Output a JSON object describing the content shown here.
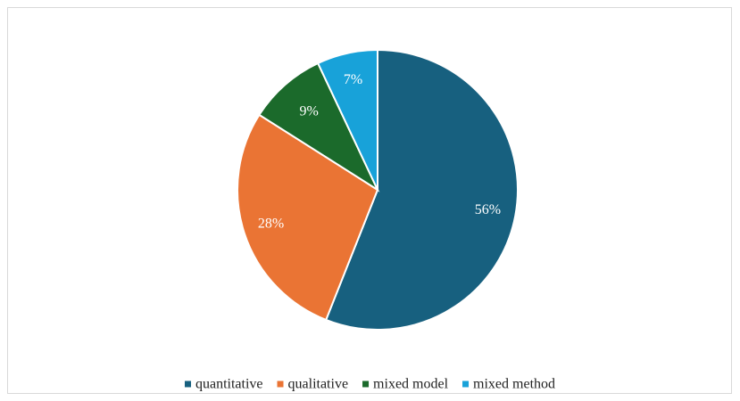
{
  "chart_data": {
    "type": "pie",
    "title": "",
    "categories": [
      "quantitative",
      "qualitative",
      "mixed model",
      "mixed method"
    ],
    "values": [
      56,
      28,
      9,
      7
    ],
    "labels": [
      "56%",
      "28%",
      "9%",
      "7%"
    ],
    "colors": [
      "#17607f",
      "#ea7434",
      "#1b6a2b",
      "#18a2d9"
    ],
    "legend_position": "bottom"
  }
}
